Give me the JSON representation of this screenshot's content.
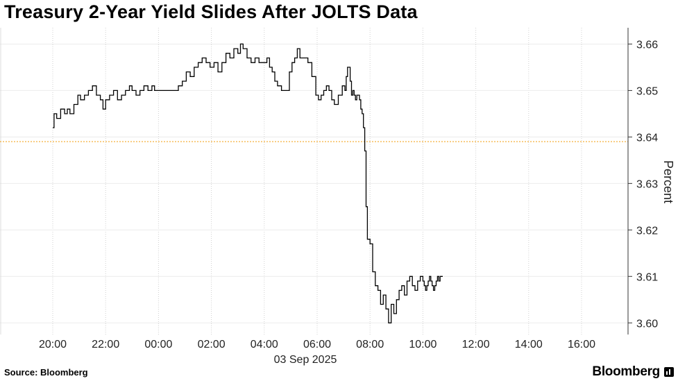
{
  "title": "Treasury 2-Year Yield Slides After JOLTS Data",
  "source": "Source: Bloomberg",
  "brand": "Bloomberg",
  "chart_data": {
    "type": "line",
    "title": "Treasury 2-Year Yield Slides After JOLTS Data",
    "ylabel": "Percent",
    "date_label": "03 Sep 2025",
    "x_ticks": [
      "20:00",
      "22:00",
      "00:00",
      "02:00",
      "04:00",
      "06:00",
      "08:00",
      "10:00",
      "12:00",
      "14:00",
      "16:00"
    ],
    "y_ticks": [
      "3.60",
      "3.61",
      "3.62",
      "3.63",
      "3.64",
      "3.65",
      "3.66"
    ],
    "xlim": [
      "20:00 (prev day)",
      "17:30"
    ],
    "ylim": [
      3.5975,
      3.6635
    ],
    "grid": "vertical dotted gridlines",
    "reference_line": {
      "value": 3.639,
      "color": "#f5a623"
    },
    "line_color": "#000000",
    "series": [
      {
        "x_hours_since_2000": [
          0.0,
          0.05,
          0.15,
          0.3,
          0.45,
          0.55,
          0.65,
          0.8,
          0.95,
          1.05,
          1.2,
          1.35,
          1.5,
          1.65,
          1.8,
          1.9,
          2.0,
          2.15,
          2.3,
          2.45,
          2.6,
          2.75,
          2.9,
          3.0,
          3.15,
          3.3,
          3.45,
          3.6,
          3.75,
          3.85,
          4.0,
          4.2,
          4.4,
          4.6,
          4.75,
          4.9,
          5.05,
          5.2,
          5.35,
          5.5,
          5.65,
          5.8,
          5.95,
          6.1,
          6.25,
          6.4,
          6.55,
          6.7,
          6.85,
          7.0,
          7.1,
          7.2,
          7.35,
          7.5,
          7.65,
          7.8,
          7.95,
          8.1,
          8.2,
          8.3,
          8.4,
          8.5,
          8.65,
          8.8,
          8.95,
          9.05,
          9.15,
          9.25,
          9.35,
          9.5,
          9.65,
          9.8,
          9.95,
          10.05,
          10.15,
          10.25,
          10.35,
          10.45,
          10.55,
          10.65,
          10.8,
          10.95,
          11.05,
          11.1,
          11.15,
          11.25,
          11.3,
          11.35,
          11.4,
          11.45,
          11.5,
          11.6,
          11.65,
          11.7,
          11.75,
          11.8,
          11.85,
          11.9,
          12.0,
          12.1,
          12.2,
          12.3,
          12.4,
          12.5,
          12.6,
          12.7,
          12.8,
          12.9,
          13.0,
          13.1,
          13.2,
          13.3,
          13.4,
          13.5,
          13.6,
          13.7,
          13.8,
          13.9,
          14.0,
          14.05,
          14.1,
          14.15,
          14.2,
          14.25,
          14.3,
          14.35,
          14.4,
          14.45,
          14.5,
          14.55,
          14.6,
          14.65,
          14.7,
          14.75
        ],
        "y": [
          3.642,
          3.645,
          3.644,
          3.646,
          3.645,
          3.646,
          3.645,
          3.647,
          3.649,
          3.648,
          3.649,
          3.65,
          3.651,
          3.649,
          3.648,
          3.646,
          3.648,
          3.649,
          3.65,
          3.648,
          3.649,
          3.65,
          3.651,
          3.65,
          3.649,
          3.65,
          3.651,
          3.65,
          3.651,
          3.65,
          3.65,
          3.65,
          3.65,
          3.65,
          3.651,
          3.652,
          3.654,
          3.653,
          3.655,
          3.656,
          3.657,
          3.656,
          3.655,
          3.656,
          3.654,
          3.656,
          3.658,
          3.657,
          3.659,
          3.658,
          3.66,
          3.659,
          3.657,
          3.656,
          3.657,
          3.656,
          3.656,
          3.657,
          3.655,
          3.654,
          3.652,
          3.651,
          3.65,
          3.65,
          3.654,
          3.656,
          3.657,
          3.659,
          3.657,
          3.657,
          3.656,
          3.653,
          3.649,
          3.648,
          3.649,
          3.65,
          3.651,
          3.65,
          3.648,
          3.647,
          3.649,
          3.651,
          3.65,
          3.653,
          3.655,
          3.652,
          3.649,
          3.65,
          3.649,
          3.648,
          3.649,
          3.648,
          3.646,
          3.645,
          3.642,
          3.637,
          3.625,
          3.618,
          3.617,
          3.611,
          3.608,
          3.607,
          3.604,
          3.606,
          3.603,
          3.6,
          3.604,
          3.602,
          3.605,
          3.607,
          3.608,
          3.606,
          3.609,
          3.61,
          3.608,
          3.607,
          3.609,
          3.61,
          3.609,
          3.608,
          3.607,
          3.608,
          3.609,
          3.61,
          3.609,
          3.608,
          3.607,
          3.608,
          3.609,
          3.61,
          3.609,
          3.61,
          3.61,
          3.61
        ]
      }
    ]
  }
}
